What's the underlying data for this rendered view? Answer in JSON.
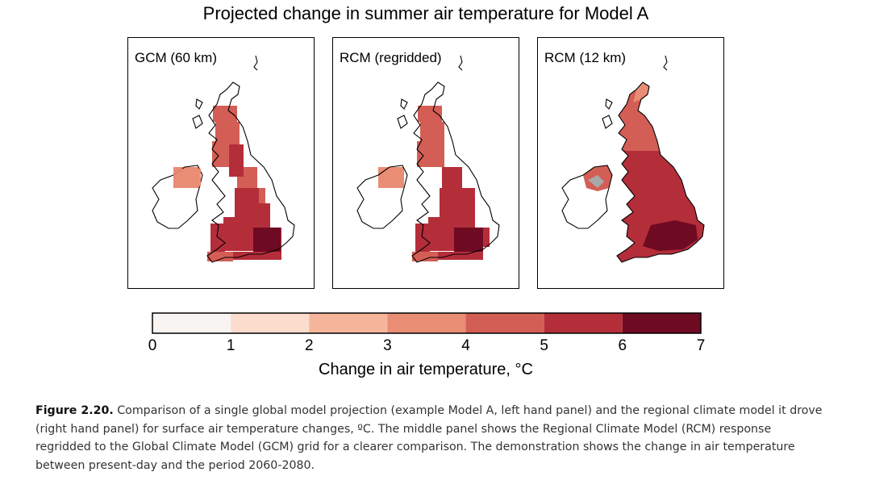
{
  "title": "Projected change in summer air temperature for Model A",
  "panels": [
    {
      "label": "GCM (60 km)"
    },
    {
      "label": "RCM (regridded)"
    },
    {
      "label": "RCM (12 km)"
    }
  ],
  "legend": {
    "title": "Change in air temperature,  °C",
    "ticks": [
      "0",
      "1",
      "2",
      "3",
      "4",
      "5",
      "6",
      "7"
    ],
    "bins": [
      {
        "range": [
          0,
          1
        ],
        "color": "#f7f4f2"
      },
      {
        "range": [
          1,
          2
        ],
        "color": "#fbdccd"
      },
      {
        "range": [
          2,
          3
        ],
        "color": "#f4b59b"
      },
      {
        "range": [
          3,
          4
        ],
        "color": "#e98d74"
      },
      {
        "range": [
          4,
          5
        ],
        "color": "#d35e55"
      },
      {
        "range": [
          5,
          6
        ],
        "color": "#b42e3a"
      },
      {
        "range": [
          6,
          7
        ],
        "color": "#6f0a23"
      }
    ]
  },
  "colors": {
    "land_base": "#ffffff",
    "coastline": "#000000",
    "ireland_grey": "#a9a9a9"
  },
  "caption": {
    "figure_label": "Figure 2.20.",
    "text": " Comparison of a single global model projection (example Model A, left hand panel) and the regional climate model it drove (right hand panel) for surface air temperature changes, ºC. The middle panel shows the Regional Climate Model (RCM) response regridded to the Global Climate Model (GCM) grid for a clearer comparison. The demonstration shows the change in air temperature between present-day and the period 2060-2080."
  }
}
